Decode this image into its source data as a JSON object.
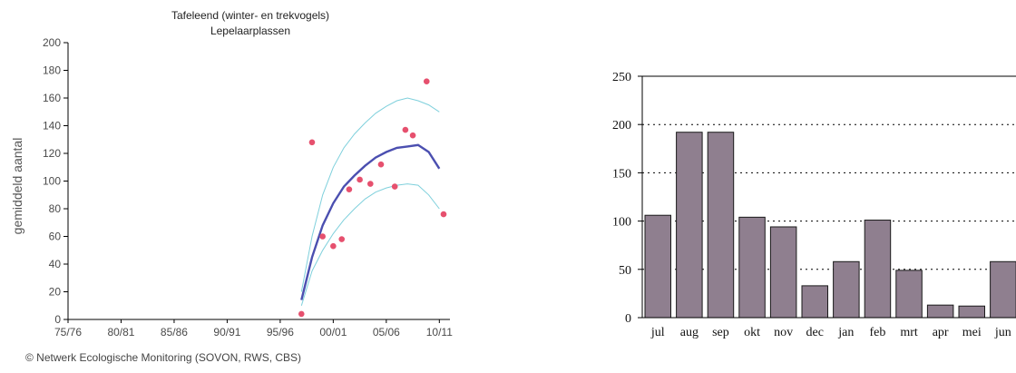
{
  "colors": {
    "trend": "#4b4fb0",
    "ci": "#7fd0dc",
    "points": "#e6506e",
    "bars": "#8f7f8f",
    "axis": "#000000",
    "tickText": "#4a4a4a"
  },
  "chart_data": [
    {
      "type": "line",
      "title": "Tafeleend (winter- en trekvogels)",
      "subtitle": "Lepelaarplassen",
      "ylabel": "gemiddeld aantal",
      "ylim": [
        0,
        200
      ],
      "yticks": [
        "0",
        "20",
        "40",
        "60",
        "80",
        "100",
        "120",
        "140",
        "160",
        "180",
        "200"
      ],
      "xlim": [
        1975,
        2011
      ],
      "xticks": [
        {
          "label": "75/76",
          "x": 1975
        },
        {
          "label": "80/81",
          "x": 1980
        },
        {
          "label": "85/86",
          "x": 1985
        },
        {
          "label": "90/91",
          "x": 1990
        },
        {
          "label": "95/96",
          "x": 1995
        },
        {
          "label": "00/01",
          "x": 2000
        },
        {
          "label": "05/06",
          "x": 2005
        },
        {
          "label": "10/11",
          "x": 2010
        }
      ],
      "series": [
        {
          "role": "trend",
          "points": [
            [
              1997,
              14
            ],
            [
              1998,
              45
            ],
            [
              1999,
              68
            ],
            [
              2000,
              84
            ],
            [
              2001,
              96
            ],
            [
              2002,
              104
            ],
            [
              2003,
              111
            ],
            [
              2004,
              117
            ],
            [
              2005,
              121
            ],
            [
              2006,
              124
            ],
            [
              2007,
              125
            ],
            [
              2008,
              126
            ],
            [
              2009,
              121
            ],
            [
              2010,
              109
            ]
          ]
        },
        {
          "role": "upper",
          "points": [
            [
              1997,
              20
            ],
            [
              1998,
              60
            ],
            [
              1999,
              90
            ],
            [
              2000,
              110
            ],
            [
              2001,
              124
            ],
            [
              2002,
              134
            ],
            [
              2003,
              142
            ],
            [
              2004,
              149
            ],
            [
              2005,
              154
            ],
            [
              2006,
              158
            ],
            [
              2007,
              160
            ],
            [
              2008,
              158
            ],
            [
              2009,
              155
            ],
            [
              2010,
              150
            ]
          ]
        },
        {
          "role": "lower",
          "points": [
            [
              1997,
              10
            ],
            [
              1998,
              35
            ],
            [
              1999,
              50
            ],
            [
              2000,
              62
            ],
            [
              2001,
              72
            ],
            [
              2002,
              80
            ],
            [
              2003,
              87
            ],
            [
              2004,
              92
            ],
            [
              2005,
              95
            ],
            [
              2006,
              97
            ],
            [
              2007,
              98
            ],
            [
              2008,
              97
            ],
            [
              2009,
              90
            ],
            [
              2010,
              80
            ]
          ]
        },
        {
          "role": "observed",
          "points": [
            [
              1997,
              4
            ],
            [
              1998,
              128
            ],
            [
              1999,
              60
            ],
            [
              2000,
              53
            ],
            [
              2000.8,
              58
            ],
            [
              2001.5,
              94
            ],
            [
              2002.5,
              101
            ],
            [
              2003.5,
              98
            ],
            [
              2004.5,
              112
            ],
            [
              2005.8,
              96
            ],
            [
              2006.8,
              137
            ],
            [
              2007.5,
              133
            ],
            [
              2008.8,
              172
            ],
            [
              2010.4,
              76
            ]
          ]
        }
      ]
    },
    {
      "type": "bar",
      "categories": [
        "jul",
        "aug",
        "sep",
        "okt",
        "nov",
        "dec",
        "jan",
        "feb",
        "mrt",
        "apr",
        "mei",
        "jun"
      ],
      "values": [
        106,
        192,
        192,
        104,
        94,
        33,
        58,
        101,
        49,
        13,
        12,
        58
      ],
      "ylim": [
        0,
        250
      ],
      "yticks": [
        "0",
        "50",
        "100",
        "150",
        "200",
        "250"
      ],
      "grid": "dotted"
    }
  ],
  "footer": "© Netwerk Ecologische Monitoring (SOVON, RWS, CBS)"
}
